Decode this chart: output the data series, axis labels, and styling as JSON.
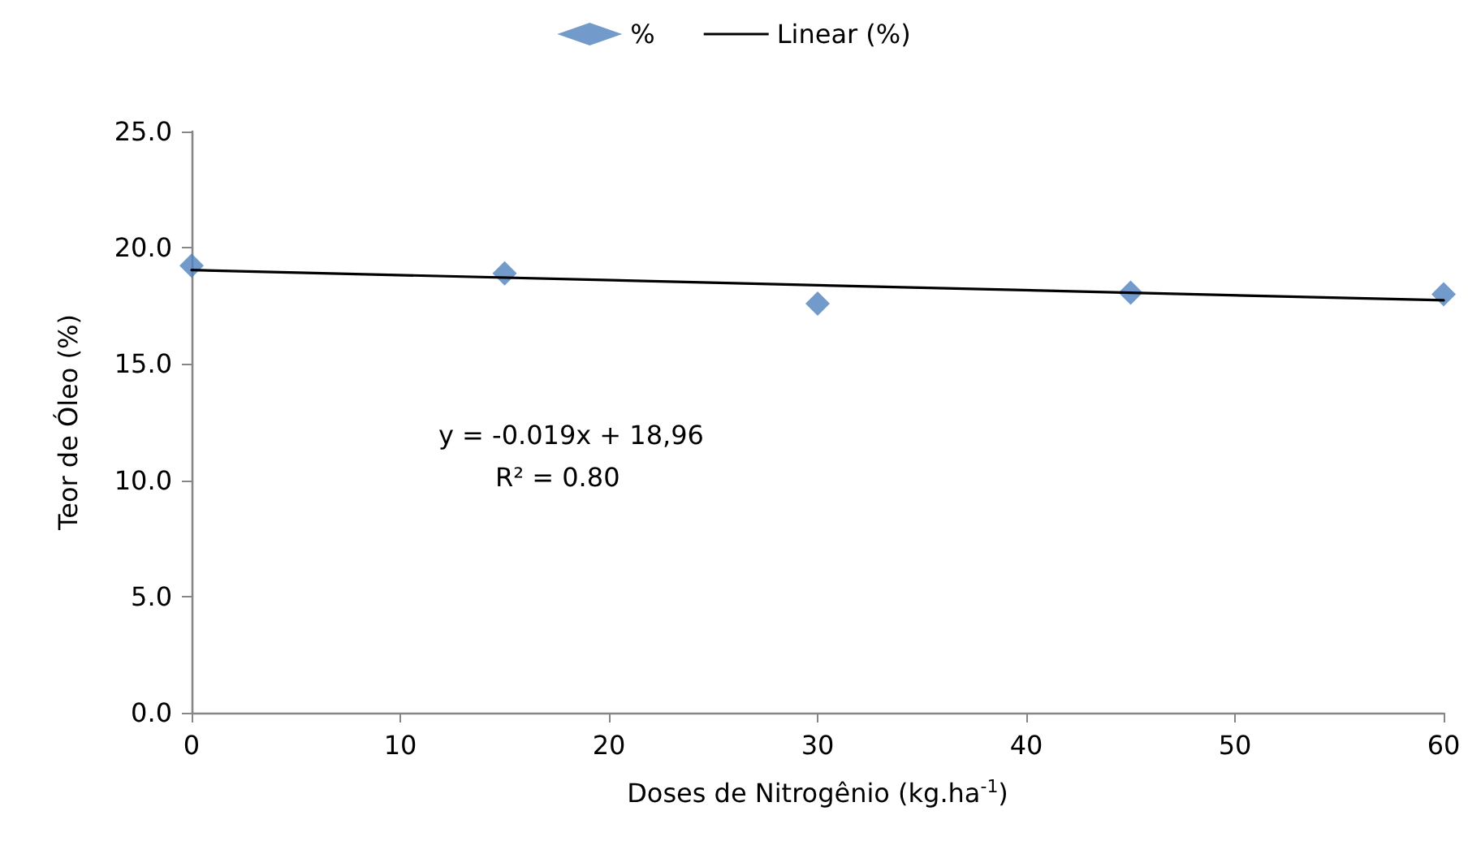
{
  "chart_data": {
    "type": "scatter",
    "xlabel": "Doses de Nitrogênio (kg.ha$^{-1}$)",
    "ylabel": "Teor de Óleo (%)",
    "x": [
      0,
      15,
      30,
      45,
      60
    ],
    "series": [
      {
        "name": "%",
        "color": "#4f81bd",
        "marker": "diamond",
        "values": [
          19.23,
          18.9,
          17.6,
          18.07,
          18.0
        ]
      },
      {
        "name": "Linear (%)",
        "type": "line",
        "color": "#000000",
        "marker": "none",
        "x": [
          0,
          60
        ],
        "values": [
          19.04,
          17.74
        ]
      }
    ],
    "xlim": [
      0,
      60
    ],
    "xticks": [
      0,
      10,
      20,
      30,
      40,
      50,
      60
    ],
    "ylim": [
      0,
      25
    ],
    "yticks": [
      {
        "value": 0,
        "label": "0.0"
      },
      {
        "value": 5,
        "label": "5.0"
      },
      {
        "value": 10,
        "label": "10.0"
      },
      {
        "value": 15,
        "label": "15.0"
      },
      {
        "value": 20,
        "label": "20.0"
      },
      {
        "value": 25,
        "label": "25.0"
      }
    ],
    "annotations": [
      "y = -0.019x + 18,96",
      "R² = 0.80"
    ],
    "grid": false,
    "legend": "top"
  }
}
